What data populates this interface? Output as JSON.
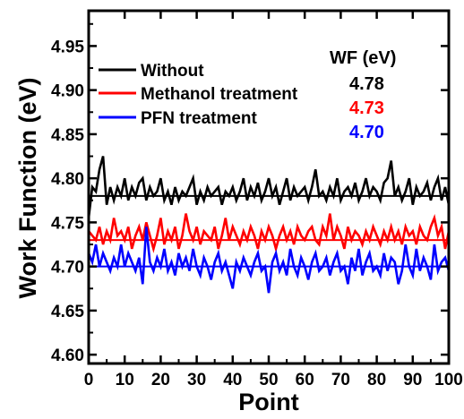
{
  "chart_data": {
    "type": "line",
    "xlabel": "Point",
    "ylabel": "Work Function (eV)",
    "xlim": [
      0,
      100
    ],
    "ylim": [
      4.59,
      4.99
    ],
    "xticks": [
      "0",
      "10",
      "20",
      "30",
      "40",
      "50",
      "60",
      "70",
      "80",
      "90",
      "100"
    ],
    "yticks": [
      "4.60",
      "4.65",
      "4.70",
      "4.75",
      "4.80",
      "4.85",
      "4.90",
      "4.95"
    ],
    "legend_placement": "top-left",
    "grid": false,
    "annotation_header": "WF (eV)",
    "series": [
      {
        "name": "Without",
        "color": "#000000",
        "mean": 4.78,
        "mean_label": "4.78",
        "values": [
          4.755,
          4.79,
          4.785,
          4.81,
          4.825,
          4.77,
          4.79,
          4.775,
          4.79,
          4.78,
          4.8,
          4.775,
          4.79,
          4.78,
          4.795,
          4.8,
          4.775,
          4.79,
          4.78,
          4.785,
          4.8,
          4.775,
          4.785,
          4.77,
          4.79,
          4.775,
          4.785,
          4.78,
          4.79,
          4.8,
          4.77,
          4.785,
          4.775,
          4.79,
          4.78,
          4.785,
          4.79,
          4.77,
          4.785,
          4.78,
          4.79,
          4.775,
          4.785,
          4.8,
          4.775,
          4.79,
          4.78,
          4.795,
          4.775,
          4.785,
          4.8,
          4.78,
          4.79,
          4.77,
          4.785,
          4.8,
          4.775,
          4.79,
          4.78,
          4.785,
          4.79,
          4.775,
          4.79,
          4.81,
          4.78,
          4.785,
          4.775,
          4.79,
          4.78,
          4.8,
          4.775,
          4.785,
          4.79,
          4.78,
          4.795,
          4.775,
          4.785,
          4.8,
          4.78,
          4.79,
          4.785,
          4.775,
          4.795,
          4.8,
          4.82,
          4.78,
          4.79,
          4.775,
          4.785,
          4.8,
          4.77,
          4.79,
          4.78,
          4.785,
          4.795,
          4.775,
          4.79,
          4.8,
          4.775,
          4.79,
          4.77
        ]
      },
      {
        "name": "Methanol treatment",
        "color": "#ff0000",
        "mean": 4.73,
        "mean_label": "4.73",
        "values": [
          4.74,
          4.735,
          4.73,
          4.745,
          4.725,
          4.74,
          4.73,
          4.755,
          4.735,
          4.74,
          4.73,
          4.745,
          4.72,
          4.735,
          4.745,
          4.73,
          4.75,
          4.735,
          4.72,
          4.735,
          4.755,
          4.725,
          4.74,
          4.73,
          4.745,
          4.72,
          4.735,
          4.76,
          4.74,
          4.73,
          4.745,
          4.725,
          4.74,
          4.735,
          4.73,
          4.745,
          4.72,
          4.735,
          4.755,
          4.73,
          4.745,
          4.735,
          4.725,
          4.74,
          4.73,
          4.745,
          4.735,
          4.72,
          4.74,
          4.73,
          4.745,
          4.735,
          4.72,
          4.735,
          4.745,
          4.73,
          4.74,
          4.725,
          4.745,
          4.735,
          4.73,
          4.74,
          4.745,
          4.73,
          4.725,
          4.745,
          4.735,
          4.76,
          4.73,
          4.745,
          4.735,
          4.72,
          4.745,
          4.73,
          4.74,
          4.735,
          4.725,
          4.74,
          4.73,
          4.745,
          4.735,
          4.725,
          4.74,
          4.73,
          4.745,
          4.73,
          4.74,
          4.725,
          4.745,
          4.735,
          4.74,
          4.725,
          4.745,
          4.735,
          4.73,
          4.745,
          4.755,
          4.735,
          4.745,
          4.72,
          4.74
        ]
      },
      {
        "name": "PFN treatment",
        "color": "#0000ff",
        "mean": 4.7,
        "mean_label": "4.70",
        "values": [
          4.715,
          4.705,
          4.725,
          4.7,
          4.715,
          4.705,
          4.695,
          4.71,
          4.7,
          4.725,
          4.7,
          4.715,
          4.705,
          4.695,
          4.71,
          4.68,
          4.745,
          4.705,
          4.695,
          4.71,
          4.7,
          4.72,
          4.695,
          4.705,
          4.69,
          4.715,
          4.7,
          4.71,
          4.695,
          4.72,
          4.7,
          4.69,
          4.71,
          4.7,
          4.685,
          4.705,
          4.715,
          4.695,
          4.705,
          4.69,
          4.675,
          4.705,
          4.695,
          4.71,
          4.7,
          4.69,
          4.705,
          4.715,
          4.695,
          4.7,
          4.67,
          4.705,
          4.715,
          4.695,
          4.705,
          4.69,
          4.72,
          4.7,
          4.69,
          4.71,
          4.7,
          4.685,
          4.705,
          4.715,
          4.695,
          4.7,
          4.71,
          4.69,
          4.705,
          4.715,
          4.695,
          4.7,
          4.68,
          4.71,
          4.695,
          4.72,
          4.69,
          4.705,
          4.715,
          4.695,
          4.7,
          4.69,
          4.715,
          4.695,
          4.71,
          4.705,
          4.68,
          4.695,
          4.725,
          4.7,
          4.69,
          4.72,
          4.695,
          4.71,
          4.7,
          4.685,
          4.725,
          4.695,
          4.705,
          4.71,
          4.695
        ]
      }
    ]
  }
}
